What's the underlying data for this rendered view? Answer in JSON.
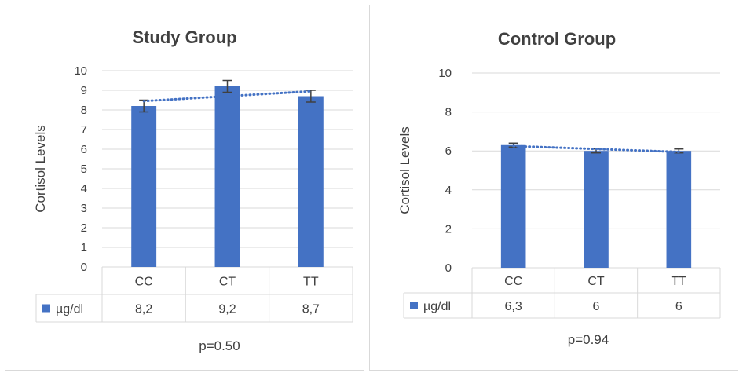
{
  "colors": {
    "bar": "#4472c4",
    "trend": "#4472c4",
    "grid": "#d9d9d9",
    "text": "#404040",
    "error": "#404040"
  },
  "chart_data": [
    {
      "type": "bar",
      "title": "Study Group",
      "ylabel": "Cortisol Levels",
      "xlabel": "",
      "ylim": [
        0,
        10
      ],
      "yticks": [
        0,
        1,
        2,
        3,
        4,
        5,
        6,
        7,
        8,
        9,
        10
      ],
      "categories": [
        "CC",
        "CT",
        "TT"
      ],
      "series": [
        {
          "name": "µg/dl",
          "values": [
            8.2,
            9.2,
            8.7
          ],
          "error": [
            0.3,
            0.3,
            0.3
          ]
        }
      ],
      "data_table": [
        "8,2",
        "9,2",
        "8,7"
      ],
      "trendline": "linear, dotted",
      "grid": true,
      "legend": "data-table",
      "annotation": "p=0.50"
    },
    {
      "type": "bar",
      "title": "Control Group",
      "ylabel": "Cortisol Levels",
      "xlabel": "",
      "ylim": [
        0,
        10
      ],
      "yticks": [
        0,
        2,
        4,
        6,
        8,
        10
      ],
      "categories": [
        "CC",
        "CT",
        "TT"
      ],
      "series": [
        {
          "name": "µg/dl",
          "values": [
            6.3,
            6.0,
            6.0
          ],
          "error": [
            0.1,
            0.1,
            0.1
          ]
        }
      ],
      "data_table": [
        "6,3",
        "6",
        "6"
      ],
      "trendline": "linear, dotted",
      "grid": true,
      "legend": "data-table",
      "annotation": "p=0.94"
    }
  ]
}
